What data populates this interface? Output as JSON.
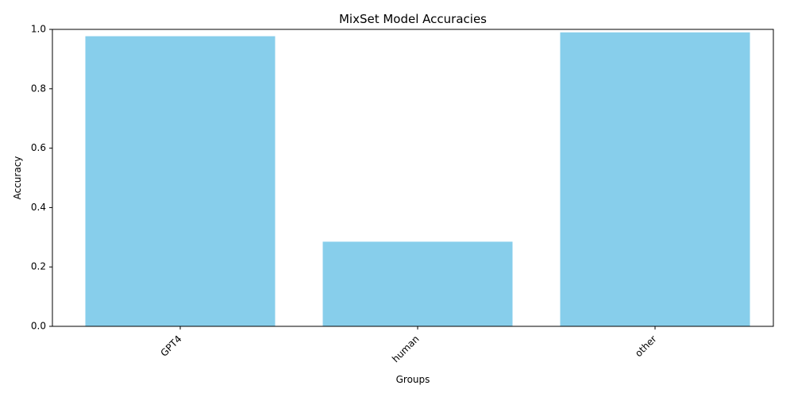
{
  "chart_data": {
    "type": "bar",
    "title": "MixSet Model Accuracies",
    "xlabel": "Groups",
    "ylabel": "Accuracy",
    "categories": [
      "GPT4",
      "human",
      "other"
    ],
    "values": [
      0.977,
      0.285,
      0.99
    ],
    "ylim": [
      0,
      1
    ],
    "yticks": [
      0.0,
      0.2,
      0.4,
      0.6,
      0.8,
      1.0
    ],
    "ytick_labels": [
      "0.0",
      "0.2",
      "0.4",
      "0.6",
      "0.8",
      "1.0"
    ],
    "bar_color": "#87ceeb",
    "grid": false,
    "x_tick_rotation_deg": 45,
    "legend": "none"
  }
}
